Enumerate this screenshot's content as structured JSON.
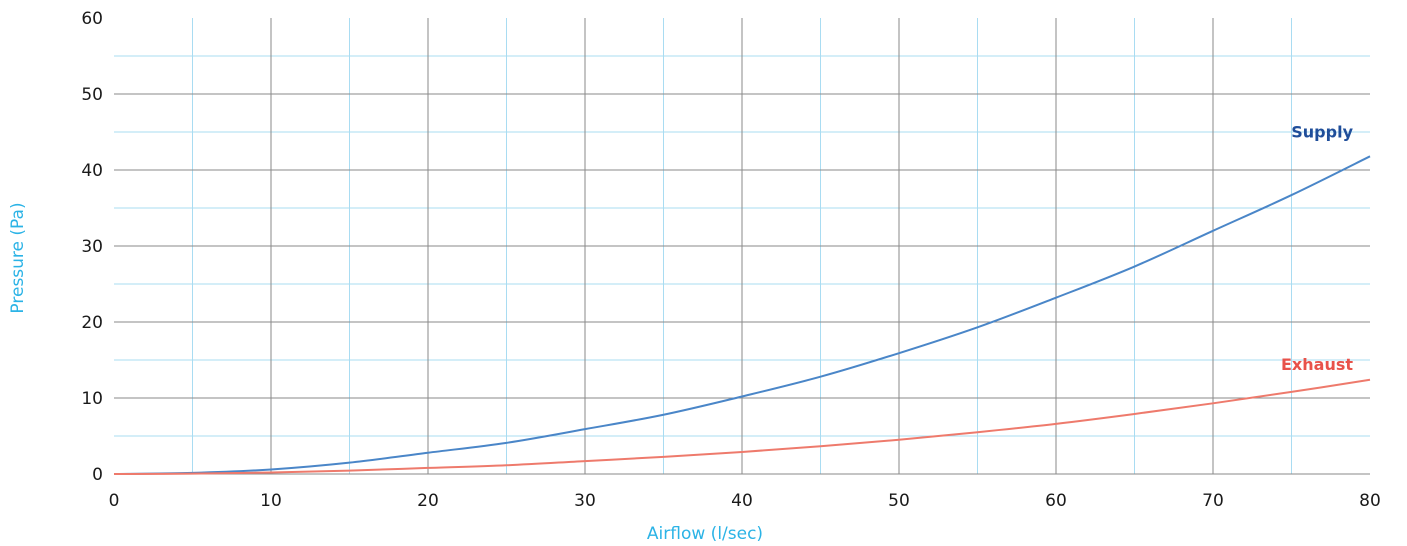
{
  "chart_data": {
    "type": "line",
    "title": "",
    "xlabel": "Airflow (l/sec)",
    "ylabel": "Pressure (Pa)",
    "xlim": [
      0,
      80
    ],
    "ylim": [
      0,
      60
    ],
    "x_ticks": [
      "0",
      "10",
      "20",
      "30",
      "40",
      "50",
      "60",
      "70",
      "80"
    ],
    "y_ticks": [
      "0",
      "10",
      "20",
      "30",
      "40",
      "50",
      "60"
    ],
    "grid": true,
    "colors": {
      "major_grid": "#8a8a8a",
      "minor_grid": "#a9dcf2",
      "axis_title": "#2bb3e6",
      "supply": "#4a86c8",
      "supply_label": "#1f4e9a",
      "exhaust": "#ee7a6c",
      "exhaust_label": "#e8524a"
    },
    "x": [
      0,
      5,
      10,
      15,
      20,
      25,
      30,
      35,
      40,
      45,
      50,
      55,
      60,
      65,
      70,
      75,
      80
    ],
    "series": [
      {
        "name": "Supply",
        "color": "#4a86c8",
        "values": [
          0,
          0.15,
          0.6,
          1.5,
          2.8,
          4.1,
          5.9,
          7.8,
          10.2,
          12.8,
          15.9,
          19.3,
          23.2,
          27.3,
          32.0,
          36.7,
          41.8
        ]
      },
      {
        "name": "Exhaust",
        "color": "#ee7a6c",
        "values": [
          0,
          0.05,
          0.2,
          0.45,
          0.8,
          1.15,
          1.7,
          2.25,
          2.9,
          3.65,
          4.5,
          5.5,
          6.6,
          7.9,
          9.3,
          10.8,
          12.4
        ]
      }
    ]
  }
}
